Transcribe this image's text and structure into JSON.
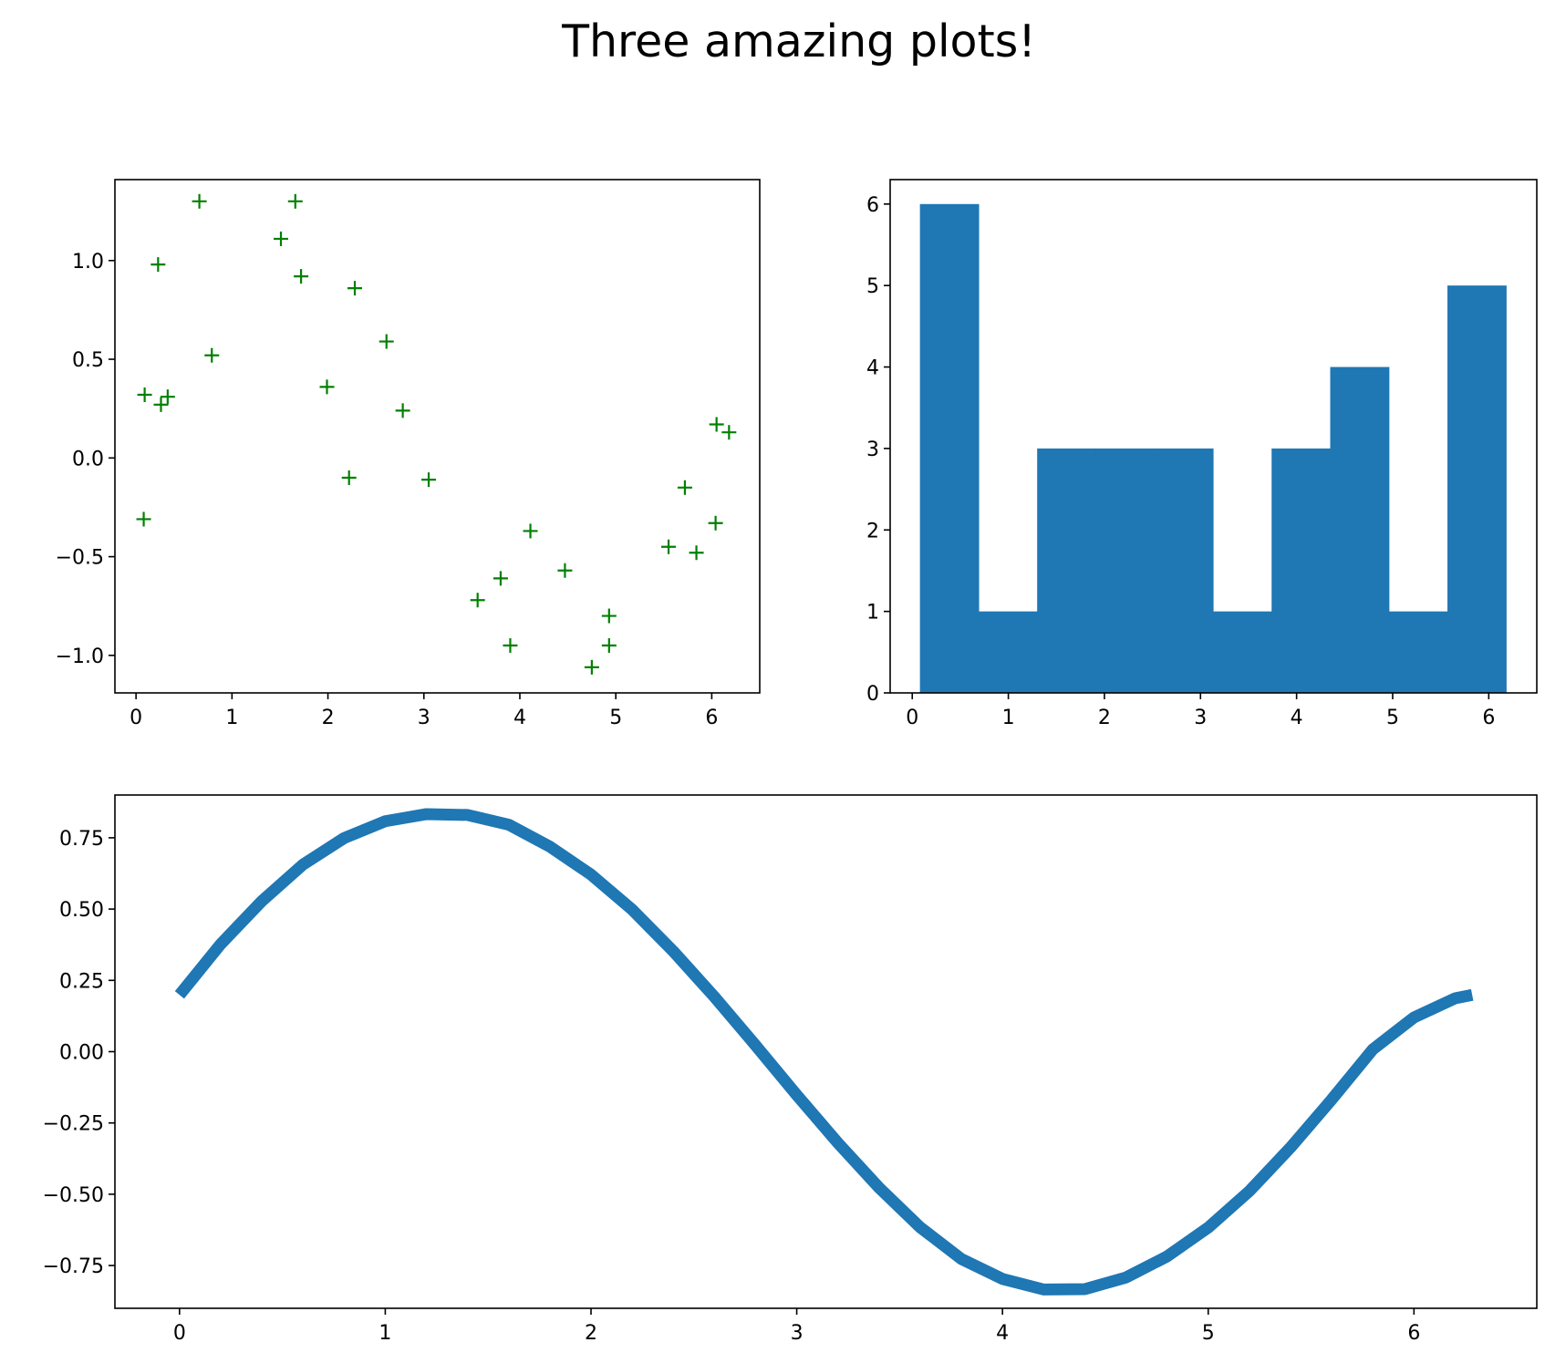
{
  "figure": {
    "title": "Three amazing plots!"
  },
  "chart_data": [
    {
      "type": "scatter",
      "title": "",
      "xlabel": "",
      "ylabel": "",
      "marker": "+",
      "color": "#008000",
      "xlim": [
        -0.22,
        6.5
      ],
      "ylim": [
        -1.19,
        1.41
      ],
      "xticks": [
        0,
        1,
        2,
        3,
        4,
        5,
        6
      ],
      "xtick_labels": [
        "0",
        "1",
        "2",
        "3",
        "4",
        "5",
        "6"
      ],
      "yticks": [
        -1.0,
        -0.5,
        0.0,
        0.5,
        1.0
      ],
      "ytick_labels": [
        "−1.0",
        "−0.5",
        "0.0",
        "0.5",
        "1.0"
      ],
      "grid": false,
      "points": [
        {
          "x": 0.08,
          "y": -0.31
        },
        {
          "x": 0.09,
          "y": 0.32
        },
        {
          "x": 0.23,
          "y": 0.98
        },
        {
          "x": 0.26,
          "y": 0.27
        },
        {
          "x": 0.33,
          "y": 0.31
        },
        {
          "x": 0.66,
          "y": 1.3
        },
        {
          "x": 0.79,
          "y": 0.52
        },
        {
          "x": 1.51,
          "y": 1.11
        },
        {
          "x": 1.66,
          "y": 1.3
        },
        {
          "x": 1.72,
          "y": 0.92
        },
        {
          "x": 1.99,
          "y": 0.36
        },
        {
          "x": 2.22,
          "y": -0.1
        },
        {
          "x": 2.28,
          "y": 0.86
        },
        {
          "x": 2.61,
          "y": 0.59
        },
        {
          "x": 2.78,
          "y": 0.24
        },
        {
          "x": 3.05,
          "y": -0.11
        },
        {
          "x": 3.56,
          "y": -0.72
        },
        {
          "x": 3.8,
          "y": -0.61
        },
        {
          "x": 3.9,
          "y": -0.95
        },
        {
          "x": 4.11,
          "y": -0.37
        },
        {
          "x": 4.47,
          "y": -0.57
        },
        {
          "x": 4.75,
          "y": -1.06
        },
        {
          "x": 4.93,
          "y": -0.8
        },
        {
          "x": 4.93,
          "y": -0.95
        },
        {
          "x": 5.55,
          "y": -0.45
        },
        {
          "x": 5.72,
          "y": -0.15
        },
        {
          "x": 5.84,
          "y": -0.48
        },
        {
          "x": 6.04,
          "y": -0.33
        },
        {
          "x": 6.05,
          "y": 0.17
        },
        {
          "x": 6.18,
          "y": 0.13
        }
      ]
    },
    {
      "type": "bar",
      "subtype": "histogram",
      "title": "",
      "xlabel": "",
      "ylabel": "",
      "color": "#1f77b4",
      "xlim": [
        -0.23,
        6.5
      ],
      "ylim": [
        0,
        6.3
      ],
      "xticks": [
        0,
        1,
        2,
        3,
        4,
        5,
        6
      ],
      "xtick_labels": [
        "0",
        "1",
        "2",
        "3",
        "4",
        "5",
        "6"
      ],
      "yticks": [
        0,
        1,
        2,
        3,
        4,
        5,
        6
      ],
      "ytick_labels": [
        "0",
        "1",
        "2",
        "3",
        "4",
        "5",
        "6"
      ],
      "grid": false,
      "bin_edges": [
        0.08,
        0.69,
        1.3,
        1.91,
        2.52,
        3.13,
        3.74,
        4.35,
        4.96,
        5.57,
        6.18
      ],
      "values": [
        6,
        1,
        3,
        3,
        3,
        1,
        3,
        4,
        1,
        5
      ]
    },
    {
      "type": "line",
      "title": "",
      "xlabel": "",
      "ylabel": "",
      "color": "#1f77b4",
      "xlim": [
        -0.314,
        6.597
      ],
      "ylim": [
        -0.9,
        0.9
      ],
      "xticks": [
        0,
        1,
        2,
        3,
        4,
        5,
        6
      ],
      "xtick_labels": [
        "0",
        "1",
        "2",
        "3",
        "4",
        "5",
        "6"
      ],
      "yticks": [
        -0.75,
        -0.5,
        -0.25,
        0.0,
        0.25,
        0.5,
        0.75
      ],
      "ytick_labels": [
        "−0.75",
        "−0.50",
        "−0.25",
        "0.00",
        "0.25",
        "0.50",
        "0.75"
      ],
      "grid": false,
      "series": [
        {
          "x": [
            0.0,
            0.2,
            0.4,
            0.6,
            0.8,
            1.0,
            1.2,
            1.4,
            1.6,
            1.8,
            2.0,
            2.2,
            2.4,
            2.6,
            2.8,
            3.0,
            3.2,
            3.4,
            3.6,
            3.8,
            4.0,
            4.2,
            4.4,
            4.6,
            4.8,
            5.0,
            5.2,
            5.4,
            5.6,
            5.8,
            6.0,
            6.2,
            6.283
          ],
          "y": [
            0.199,
            0.377,
            0.528,
            0.656,
            0.749,
            0.808,
            0.833,
            0.83,
            0.796,
            0.719,
            0.621,
            0.498,
            0.352,
            0.192,
            0.022,
            -0.152,
            -0.32,
            -0.477,
            -0.616,
            -0.727,
            -0.797,
            -0.834,
            -0.833,
            -0.792,
            -0.718,
            -0.617,
            -0.489,
            -0.336,
            -0.168,
            0.008,
            0.12,
            0.187,
            0.199
          ]
        }
      ]
    }
  ]
}
